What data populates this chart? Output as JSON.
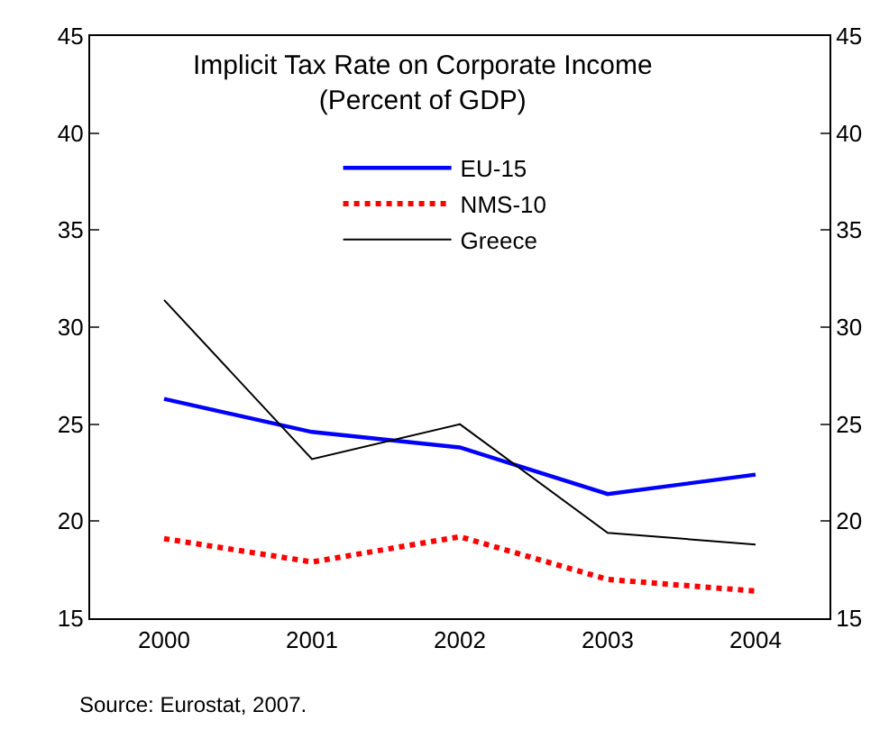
{
  "chart_data": {
    "type": "line",
    "title": "Implicit Tax Rate on Corporate Income",
    "subtitle": "(Percent of GDP)",
    "categories": [
      "2000",
      "2001",
      "2002",
      "2003",
      "2004"
    ],
    "series": [
      {
        "name": "EU-15",
        "color": "#0000ff",
        "line_style": "solid",
        "values": [
          26.3,
          24.6,
          23.8,
          21.4,
          22.4
        ]
      },
      {
        "name": "NMS-10",
        "color": "#ff0000",
        "line_style": "dotted",
        "values": [
          19.1,
          17.9,
          19.2,
          17.0,
          16.4
        ]
      },
      {
        "name": "Greece",
        "color": "#000000",
        "line_style": "solid",
        "values": [
          31.4,
          23.2,
          25.0,
          19.4,
          18.8
        ]
      }
    ],
    "ylim": [
      15,
      45
    ],
    "yticks": [
      15,
      20,
      25,
      30,
      35,
      40,
      45
    ],
    "y2lim": [
      15,
      45
    ],
    "y2ticks": [
      15,
      20,
      25,
      30,
      35,
      40,
      45
    ],
    "legend": "top",
    "marker": "none",
    "annotations": [
      "Source: Eurostat, 2007."
    ]
  }
}
